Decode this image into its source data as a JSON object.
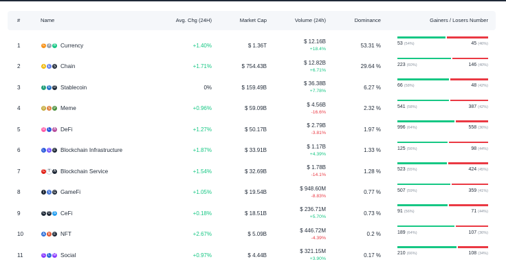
{
  "headers": {
    "rank": "#",
    "name": "Name",
    "avg_chg": "Avg. Chg (24H)",
    "market_cap": "Market Cap",
    "volume": "Volume (24h)",
    "dominance": "Dominance",
    "gainers_losers": "Gainers / Losers Number"
  },
  "colors": {
    "positive": "#16c784",
    "negative": "#ea3943",
    "header_bg": "#f5f7fa"
  },
  "rows": [
    {
      "rank": "1",
      "name": "Currency",
      "icons": [
        [
          "C",
          "#f7931a"
        ],
        [
          "X",
          "#9aa4b1"
        ],
        [
          "B",
          "#16c784"
        ]
      ],
      "avg_chg": "+1.40%",
      "chg_dir": "pos",
      "market_cap": "$ 1.36T",
      "volume": "$ 12.16B",
      "vol_chg": "+18.4%",
      "vol_dir": "pos",
      "dominance": "53.31 %",
      "gainers": "53",
      "gainers_pct": "(54%)",
      "losers": "45",
      "losers_pct": "(46%)",
      "gain_ratio": 0.54
    },
    {
      "rank": "2",
      "name": "Chain",
      "icons": [
        [
          "A",
          "#f0b90b"
        ],
        [
          "E",
          "#627eea"
        ],
        [
          "S",
          "#1f2937"
        ]
      ],
      "avg_chg": "+1.71%",
      "chg_dir": "pos",
      "market_cap": "$ 754.43B",
      "volume": "$ 12.82B",
      "vol_chg": "+6.71%",
      "vol_dir": "pos",
      "dominance": "29.64 %",
      "gainers": "223",
      "gainers_pct": "(60%)",
      "losers": "146",
      "losers_pct": "(40%)",
      "gain_ratio": 0.6
    },
    {
      "rank": "3",
      "name": "Stablecoin",
      "icons": [
        [
          "T",
          "#26a17b"
        ],
        [
          "U",
          "#2775ca"
        ],
        [
          "D",
          "#1f2937"
        ]
      ],
      "avg_chg": "0%",
      "chg_dir": "neu",
      "market_cap": "$ 159.49B",
      "volume": "$ 36.38B",
      "vol_chg": "+7.78%",
      "vol_dir": "pos",
      "dominance": "6.27 %",
      "gainers": "66",
      "gainers_pct": "(58%)",
      "losers": "48",
      "losers_pct": "(42%)",
      "gain_ratio": 0.58
    },
    {
      "rank": "4",
      "name": "Meme",
      "icons": [
        [
          "D",
          "#c2a633"
        ],
        [
          "S",
          "#e07b39"
        ],
        [
          "P",
          "#4a8f3c"
        ]
      ],
      "avg_chg": "+0.96%",
      "chg_dir": "pos",
      "market_cap": "$ 59.09B",
      "volume": "$ 4.56B",
      "vol_chg": "-16.6%",
      "vol_dir": "neg",
      "dominance": "2.32 %",
      "gainers": "541",
      "gainers_pct": "(58%)",
      "losers": "387",
      "losers_pct": "(42%)",
      "gain_ratio": 0.58
    },
    {
      "rank": "5",
      "name": "DeFi",
      "icons": [
        [
          "U",
          "#ff5ea8"
        ],
        [
          "L",
          "#2a5ada"
        ],
        [
          "A",
          "#b6509e"
        ]
      ],
      "avg_chg": "+1.27%",
      "chg_dir": "pos",
      "market_cap": "$ 50.17B",
      "volume": "$ 2.79B",
      "vol_chg": "-3.81%",
      "vol_dir": "neg",
      "dominance": "1.97 %",
      "gainers": "996",
      "gainers_pct": "(64%)",
      "losers": "558",
      "losers_pct": "(36%)",
      "gain_ratio": 0.64
    },
    {
      "rank": "6",
      "name": "Blockchain Infrastructure",
      "icons": [
        [
          "L",
          "#2a5ada"
        ],
        [
          "G",
          "#6f4cff"
        ],
        [
          "F",
          "#1f2937"
        ]
      ],
      "avg_chg": "+1.87%",
      "chg_dir": "pos",
      "market_cap": "$ 33.91B",
      "volume": "$ 1.17B",
      "vol_chg": "+4.39%",
      "vol_dir": "pos",
      "dominance": "1.33 %",
      "gainers": "125",
      "gainers_pct": "(56%)",
      "losers": "98",
      "losers_pct": "(44%)",
      "gain_ratio": 0.56
    },
    {
      "rank": "7",
      "name": "Blockchain Service",
      "icons": [
        [
          "C",
          "#e2231a"
        ],
        [
          "T",
          "#ffffff"
        ],
        [
          "A",
          "#1f2937"
        ]
      ],
      "avg_chg": "+1.54%",
      "chg_dir": "pos",
      "market_cap": "$ 32.69B",
      "volume": "$ 1.78B",
      "vol_chg": "-14.1%",
      "vol_dir": "neg",
      "dominance": "1.28 %",
      "gainers": "523",
      "gainers_pct": "(55%)",
      "losers": "424",
      "losers_pct": "(45%)",
      "gain_ratio": 0.55
    },
    {
      "rank": "8",
      "name": "GameFi",
      "icons": [
        [
          "I",
          "#1f2937"
        ],
        [
          "S",
          "#3b6fd8"
        ],
        [
          "G",
          "#1f2937"
        ]
      ],
      "avg_chg": "+1.05%",
      "chg_dir": "pos",
      "market_cap": "$ 19.54B",
      "volume": "$ 948.60M",
      "vol_chg": "-8.83%",
      "vol_dir": "neg",
      "dominance": "0.77 %",
      "gainers": "507",
      "gainers_pct": "(59%)",
      "losers": "359",
      "losers_pct": "(41%)",
      "gain_ratio": 0.59
    },
    {
      "rank": "9",
      "name": "CeFi",
      "icons": [
        [
          "C",
          "#1f2937"
        ],
        [
          "O",
          "#1f2937"
        ],
        [
          "S",
          "#28a0f0"
        ]
      ],
      "avg_chg": "+0.18%",
      "chg_dir": "pos",
      "market_cap": "$ 18.51B",
      "volume": "$ 236.71M",
      "vol_chg": "+5.70%",
      "vol_dir": "pos",
      "dominance": "0.73 %",
      "gainers": "91",
      "gainers_pct": "(56%)",
      "losers": "71",
      "losers_pct": "(44%)",
      "gain_ratio": 0.56
    },
    {
      "rank": "10",
      "name": "NFT",
      "icons": [
        [
          "A",
          "#2f6fd8"
        ],
        [
          "B",
          "#e0502b"
        ],
        [
          "F",
          "#1f2937"
        ]
      ],
      "avg_chg": "+2.67%",
      "chg_dir": "pos",
      "market_cap": "$ 5.09B",
      "volume": "$ 446.72M",
      "vol_chg": "-4.39%",
      "vol_dir": "neg",
      "dominance": "0.2 %",
      "gainers": "189",
      "gainers_pct": "(64%)",
      "losers": "107",
      "losers_pct": "(36%)",
      "gain_ratio": 0.64
    },
    {
      "rank": "11",
      "name": "Social",
      "icons": [
        [
          "C",
          "#8b3dff"
        ],
        [
          "L",
          "#2f6fd8"
        ],
        [
          "M",
          "#8b3dff"
        ]
      ],
      "avg_chg": "+0.97%",
      "chg_dir": "pos",
      "market_cap": "$ 4.44B",
      "volume": "$ 321.15M",
      "vol_chg": "+3.90%",
      "vol_dir": "pos",
      "dominance": "0.17 %",
      "gainers": "210",
      "gainers_pct": "(66%)",
      "losers": "108",
      "losers_pct": "(34%)",
      "gain_ratio": 0.66
    }
  ]
}
